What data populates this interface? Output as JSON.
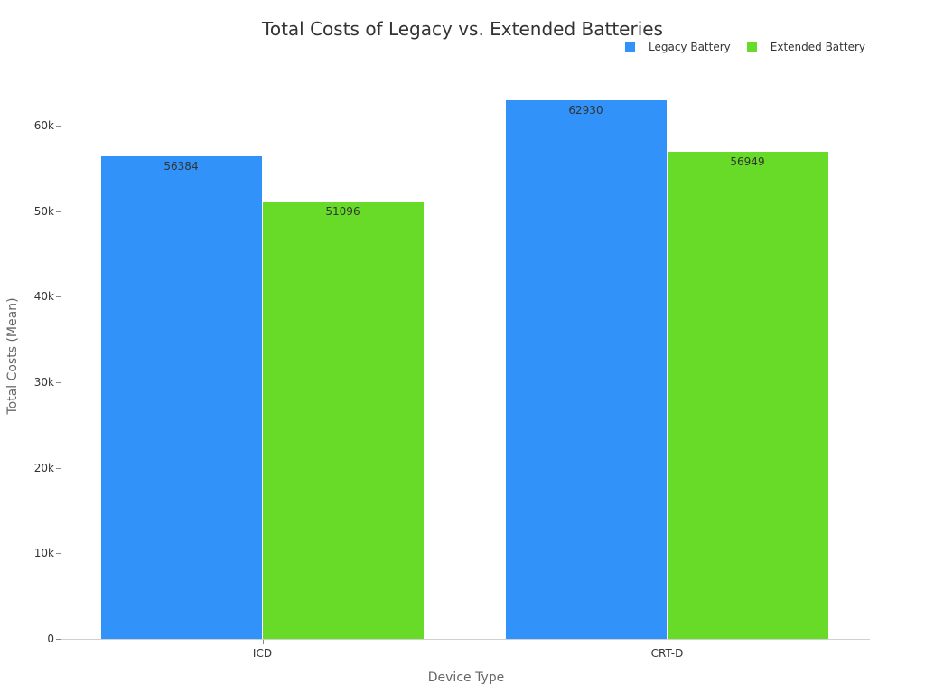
{
  "chart_data": {
    "type": "bar",
    "title": "Total Costs of Legacy vs. Extended Batteries",
    "xlabel": "Device Type",
    "ylabel": "Total Costs (Mean)",
    "categories": [
      "ICD",
      "CRT-D"
    ],
    "series": [
      {
        "name": "Legacy Battery",
        "color": "#3192f9",
        "values": [
          56384,
          62930
        ]
      },
      {
        "name": "Extended Battery",
        "color": "#67db27",
        "values": [
          51096,
          56949
        ]
      }
    ],
    "ylim": [
      0,
      66000
    ],
    "yticks": [
      0,
      10000,
      20000,
      30000,
      40000,
      50000,
      60000
    ],
    "ytick_labels": [
      "0",
      "10k",
      "20k",
      "30k",
      "40k",
      "50k",
      "60k"
    ],
    "legend_position": "top-right",
    "grid": false,
    "data_labels": true
  }
}
